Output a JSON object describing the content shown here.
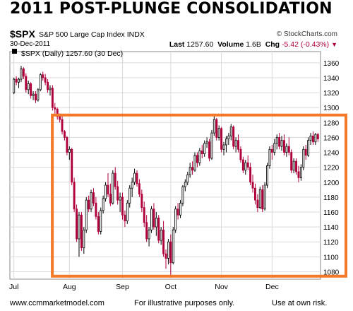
{
  "header": {
    "title": "2011 POST-PLUNGE CONSOLIDATION",
    "symbol": "$SPX",
    "description": "S&P 500 Large Cap Index INDX",
    "copyright": "© StockCharts.com",
    "date": "30-Dec-2011",
    "last_label": "Last",
    "last_value": "1257.60",
    "volume_label": "Volume",
    "volume_value": "1.6B",
    "chg_label": "Chg",
    "chg_value": "-5.42 (-0.43%)",
    "legend": "$SPX (Daily) 1257.60 (30 Dec)"
  },
  "footer": {
    "website": "www.ccmmarketmodel.com",
    "note": "For illustrative purposes only.",
    "risk": "Use at own risk."
  },
  "colors": {
    "up": "#000000",
    "down": "#b0003a",
    "highlight": "#f47a2a"
  },
  "chart_data": {
    "type": "candlestick",
    "title": "2011 POST-PLUNGE CONSOLIDATION",
    "ylim": [
      1070,
      1375
    ],
    "y_ticks": [
      1080,
      1100,
      1120,
      1140,
      1160,
      1180,
      1200,
      1220,
      1240,
      1260,
      1280,
      1300,
      1320,
      1340,
      1360
    ],
    "x_labels": [
      "Jul",
      "Aug",
      "Sep",
      "Oct",
      "Nov",
      "Dec"
    ],
    "x_label_index": [
      0,
      23,
      45,
      65,
      86,
      107
    ],
    "grid": true,
    "highlight_range": {
      "x_start_index": 17,
      "x_end_index": 130,
      "y_low": 1074,
      "y_high": 1290
    },
    "candles": [
      [
        1320,
        1340,
        1318,
        1338
      ],
      [
        1338,
        1342,
        1330,
        1334
      ],
      [
        1334,
        1340,
        1326,
        1338
      ],
      [
        1338,
        1356,
        1334,
        1352
      ],
      [
        1352,
        1354,
        1338,
        1342
      ],
      [
        1342,
        1346,
        1320,
        1324
      ],
      [
        1324,
        1336,
        1318,
        1332
      ],
      [
        1332,
        1334,
        1312,
        1316
      ],
      [
        1316,
        1322,
        1310,
        1318
      ],
      [
        1318,
        1322,
        1306,
        1310
      ],
      [
        1310,
        1326,
        1308,
        1324
      ],
      [
        1324,
        1346,
        1322,
        1344
      ],
      [
        1344,
        1348,
        1336,
        1340
      ],
      [
        1340,
        1345,
        1330,
        1334
      ],
      [
        1334,
        1338,
        1320,
        1324
      ],
      [
        1324,
        1330,
        1316,
        1326
      ],
      [
        1326,
        1330,
        1296,
        1300
      ],
      [
        1300,
        1306,
        1292,
        1298
      ],
      [
        1298,
        1300,
        1284,
        1288
      ],
      [
        1288,
        1292,
        1280,
        1284
      ],
      [
        1284,
        1290,
        1264,
        1268
      ],
      [
        1268,
        1270,
        1256,
        1260
      ],
      [
        1260,
        1262,
        1236,
        1240
      ],
      [
        1240,
        1248,
        1230,
        1244
      ],
      [
        1244,
        1246,
        1196,
        1200
      ],
      [
        1200,
        1206,
        1160,
        1164
      ],
      [
        1164,
        1170,
        1120,
        1124
      ],
      [
        1124,
        1160,
        1100,
        1156
      ],
      [
        1156,
        1160,
        1108,
        1112
      ],
      [
        1112,
        1140,
        1104,
        1136
      ],
      [
        1136,
        1180,
        1132,
        1176
      ],
      [
        1176,
        1182,
        1160,
        1164
      ],
      [
        1164,
        1190,
        1160,
        1186
      ],
      [
        1186,
        1192,
        1168,
        1172
      ],
      [
        1172,
        1180,
        1150,
        1154
      ],
      [
        1154,
        1160,
        1130,
        1134
      ],
      [
        1134,
        1166,
        1130,
        1162
      ],
      [
        1162,
        1182,
        1158,
        1178
      ],
      [
        1178,
        1200,
        1174,
        1196
      ],
      [
        1196,
        1212,
        1180,
        1184
      ],
      [
        1184,
        1198,
        1168,
        1172
      ],
      [
        1172,
        1216,
        1170,
        1212
      ],
      [
        1212,
        1220,
        1190,
        1194
      ],
      [
        1194,
        1202,
        1170,
        1176
      ],
      [
        1176,
        1186,
        1160,
        1180
      ],
      [
        1180,
        1186,
        1150,
        1156
      ],
      [
        1156,
        1162,
        1140,
        1148
      ],
      [
        1148,
        1176,
        1144,
        1172
      ],
      [
        1172,
        1196,
        1166,
        1192
      ],
      [
        1192,
        1206,
        1180,
        1200
      ],
      [
        1200,
        1218,
        1196,
        1212
      ],
      [
        1212,
        1216,
        1194,
        1198
      ],
      [
        1198,
        1204,
        1180,
        1184
      ],
      [
        1184,
        1190,
        1160,
        1166
      ],
      [
        1166,
        1174,
        1140,
        1146
      ],
      [
        1146,
        1156,
        1120,
        1124
      ],
      [
        1124,
        1140,
        1114,
        1136
      ],
      [
        1136,
        1168,
        1132,
        1164
      ],
      [
        1164,
        1172,
        1136,
        1140
      ],
      [
        1140,
        1160,
        1128,
        1152
      ],
      [
        1152,
        1156,
        1118,
        1122
      ],
      [
        1122,
        1140,
        1116,
        1136
      ],
      [
        1136,
        1148,
        1100,
        1104
      ],
      [
        1104,
        1110,
        1084,
        1098
      ],
      [
        1098,
        1124,
        1090,
        1120
      ],
      [
        1120,
        1130,
        1074,
        1092
      ],
      [
        1092,
        1140,
        1090,
        1136
      ],
      [
        1136,
        1168,
        1132,
        1164
      ],
      [
        1164,
        1172,
        1150,
        1156
      ],
      [
        1156,
        1176,
        1152,
        1172
      ],
      [
        1172,
        1196,
        1168,
        1194
      ],
      [
        1194,
        1204,
        1188,
        1200
      ],
      [
        1200,
        1214,
        1196,
        1210
      ],
      [
        1210,
        1226,
        1206,
        1220
      ],
      [
        1220,
        1228,
        1210,
        1216
      ],
      [
        1216,
        1240,
        1214,
        1236
      ],
      [
        1236,
        1240,
        1220,
        1226
      ],
      [
        1226,
        1246,
        1222,
        1242
      ],
      [
        1242,
        1250,
        1232,
        1238
      ],
      [
        1238,
        1256,
        1234,
        1252
      ],
      [
        1252,
        1260,
        1246,
        1254
      ],
      [
        1254,
        1258,
        1228,
        1232
      ],
      [
        1232,
        1270,
        1230,
        1266
      ],
      [
        1266,
        1290,
        1262,
        1284
      ],
      [
        1284,
        1286,
        1256,
        1260
      ],
      [
        1260,
        1276,
        1256,
        1272
      ],
      [
        1272,
        1274,
        1240,
        1244
      ],
      [
        1244,
        1254,
        1236,
        1250
      ],
      [
        1250,
        1262,
        1240,
        1258
      ],
      [
        1258,
        1266,
        1250,
        1262
      ],
      [
        1262,
        1278,
        1256,
        1274
      ],
      [
        1274,
        1276,
        1244,
        1248
      ],
      [
        1248,
        1260,
        1240,
        1256
      ],
      [
        1256,
        1264,
        1240,
        1244
      ],
      [
        1244,
        1248,
        1226,
        1230
      ],
      [
        1230,
        1234,
        1212,
        1216
      ],
      [
        1216,
        1230,
        1210,
        1226
      ],
      [
        1226,
        1236,
        1216,
        1220
      ],
      [
        1220,
        1226,
        1196,
        1200
      ],
      [
        1200,
        1210,
        1186,
        1192
      ],
      [
        1192,
        1198,
        1170,
        1176
      ],
      [
        1176,
        1184,
        1160,
        1166
      ],
      [
        1166,
        1194,
        1164,
        1190
      ],
      [
        1190,
        1196,
        1160,
        1164
      ],
      [
        1164,
        1200,
        1162,
        1196
      ],
      [
        1196,
        1226,
        1192,
        1222
      ],
      [
        1222,
        1248,
        1218,
        1244
      ],
      [
        1244,
        1250,
        1230,
        1240
      ],
      [
        1240,
        1258,
        1236,
        1252
      ],
      [
        1252,
        1264,
        1244,
        1260
      ],
      [
        1260,
        1266,
        1244,
        1248
      ],
      [
        1248,
        1262,
        1242,
        1256
      ],
      [
        1256,
        1264,
        1236,
        1240
      ],
      [
        1240,
        1252,
        1234,
        1248
      ],
      [
        1248,
        1260,
        1236,
        1240
      ],
      [
        1240,
        1244,
        1212,
        1216
      ],
      [
        1216,
        1232,
        1212,
        1228
      ],
      [
        1228,
        1232,
        1210,
        1214
      ],
      [
        1214,
        1222,
        1200,
        1206
      ],
      [
        1206,
        1224,
        1202,
        1220
      ],
      [
        1220,
        1248,
        1216,
        1244
      ],
      [
        1244,
        1250,
        1230,
        1236
      ],
      [
        1236,
        1260,
        1234,
        1256
      ],
      [
        1256,
        1266,
        1250,
        1262
      ],
      [
        1262,
        1268,
        1250,
        1254
      ],
      [
        1254,
        1266,
        1250,
        1264
      ],
      [
        1264,
        1266,
        1254,
        1258
      ]
    ]
  }
}
